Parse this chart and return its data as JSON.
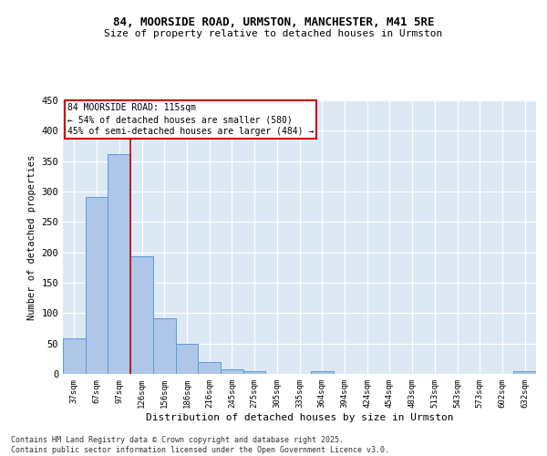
{
  "title1": "84, MOORSIDE ROAD, URMSTON, MANCHESTER, M41 5RE",
  "title2": "Size of property relative to detached houses in Urmston",
  "xlabel": "Distribution of detached houses by size in Urmston",
  "ylabel": "Number of detached properties",
  "footer": "Contains HM Land Registry data © Crown copyright and database right 2025.\nContains public sector information licensed under the Open Government Licence v3.0.",
  "bin_labels": [
    "37sqm",
    "67sqm",
    "97sqm",
    "126sqm",
    "156sqm",
    "186sqm",
    "216sqm",
    "245sqm",
    "275sqm",
    "305sqm",
    "335sqm",
    "364sqm",
    "394sqm",
    "424sqm",
    "454sqm",
    "483sqm",
    "513sqm",
    "543sqm",
    "573sqm",
    "602sqm",
    "632sqm"
  ],
  "bar_values": [
    58,
    291,
    361,
    194,
    92,
    50,
    19,
    8,
    5,
    0,
    0,
    4,
    0,
    0,
    0,
    0,
    0,
    0,
    0,
    0,
    4
  ],
  "bar_color": "#aec6e8",
  "bar_edge_color": "#5b9bd5",
  "bg_color": "#dce9f5",
  "grid_color": "#ffffff",
  "vline_x": 2.5,
  "vline_color": "#cc0000",
  "annotation_text": "84 MOORSIDE ROAD: 115sqm\n← 54% of detached houses are smaller (580)\n45% of semi-detached houses are larger (484) →",
  "annotation_box_color": "#cc0000",
  "ylim": [
    0,
    450
  ],
  "yticks": [
    0,
    50,
    100,
    150,
    200,
    250,
    300,
    350,
    400,
    450
  ]
}
